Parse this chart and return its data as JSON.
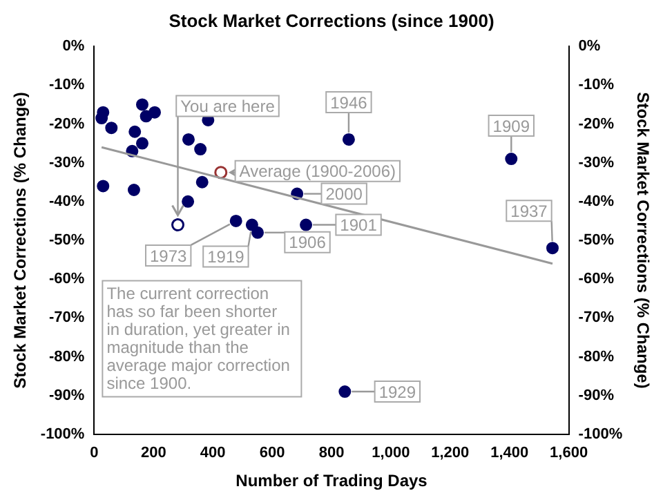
{
  "chart_data": {
    "type": "scatter",
    "title": "Stock Market Corrections (since 1900)",
    "xlabel": "Number of Trading Days",
    "ylabel": "Stock Market Corrections (% Change)",
    "y2label": "Stock Market Corrections (% Change)",
    "marker": "circle",
    "xlim": [
      0,
      1600
    ],
    "xticks": [
      0,
      200,
      400,
      600,
      800,
      {
        "value": 1000,
        "label": "1,000"
      },
      {
        "value": 1200,
        "label": "1,200"
      },
      {
        "value": 1400,
        "label": "1,400"
      },
      {
        "value": 1600,
        "label": "1,600"
      }
    ],
    "ylim": [
      -100,
      0
    ],
    "yticks": [
      {
        "value": 0,
        "label": "0%"
      },
      {
        "value": -10,
        "label": "-10%"
      },
      {
        "value": -20,
        "label": "-20%"
      },
      {
        "value": -30,
        "label": "-30%"
      },
      {
        "value": -40,
        "label": "-40%"
      },
      {
        "value": -50,
        "label": "-50%"
      },
      {
        "value": -60,
        "label": "-60%"
      },
      {
        "value": -70,
        "label": "-70%"
      },
      {
        "value": -80,
        "label": "-80%"
      },
      {
        "value": -90,
        "label": "-90%"
      },
      {
        "value": -100,
        "label": "-100%"
      }
    ],
    "y2lim": [
      -100,
      0
    ],
    "y2ticks": [
      {
        "value": 0,
        "label": "0%"
      },
      {
        "value": -10,
        "label": "-10%"
      },
      {
        "value": -20,
        "label": "-20%"
      },
      {
        "value": -30,
        "label": "-30%"
      },
      {
        "value": -40,
        "label": "-40%"
      },
      {
        "value": -50,
        "label": "-50%"
      },
      {
        "value": -60,
        "label": "-60%"
      },
      {
        "value": -70,
        "label": "-70%"
      },
      {
        "value": -80,
        "label": "-80%"
      },
      {
        "value": -90,
        "label": "-90%"
      },
      {
        "value": -100,
        "label": "-100%"
      }
    ],
    "series": [
      {
        "type": "line",
        "color": "#999999",
        "marker": "none",
        "x": [
          25,
          1545
        ],
        "values": [
          -26,
          -56
        ]
      },
      {
        "color": "#000066",
        "x": [
          30,
          25,
          58,
          162,
          175,
          204,
          137,
          162,
          128,
          384,
          318,
          358,
          30,
          134,
          364,
          316,
          478,
          532,
          551,
          714,
          684,
          858,
          1406,
          1545,
          845
        ],
        "values": [
          -17,
          -18.5,
          -21,
          -15,
          -18,
          -17,
          -22,
          -25,
          -27,
          -19,
          -24,
          -26.5,
          -36,
          -37,
          -35,
          -40,
          -45,
          -46,
          -48,
          -46,
          -38,
          -24,
          -29,
          -52,
          -89
        ]
      },
      {
        "color": "#993333",
        "x": [
          427
        ],
        "values": [
          -32.5
        ]
      },
      {
        "color": "#000066",
        "x": [
          282
        ],
        "values": [
          -46
        ]
      }
    ],
    "annotations": [
      {
        "text": "You are here",
        "x": 282,
        "y": -46
      },
      {
        "text": "1946",
        "x": 858,
        "y": -24
      },
      {
        "text": "1909",
        "x": 1406,
        "y": -29
      },
      {
        "text": "Average (1900-2006)",
        "x": 427,
        "y": -32.5
      },
      {
        "text": "2000",
        "x": 684,
        "y": -38
      },
      {
        "text": "1901",
        "x": 714,
        "y": -46
      },
      {
        "text": "1937",
        "x": 1545,
        "y": -52
      },
      {
        "text": "1973",
        "x": 478,
        "y": -45
      },
      {
        "text": "1919",
        "x": 532,
        "y": -46
      },
      {
        "text": "1906",
        "x": 551,
        "y": -48
      },
      {
        "text": "1929",
        "x": 845,
        "y": -89
      },
      "The current correction has so far been shorter in duration, yet greater in magnitude than the average major correction since 1900."
    ]
  }
}
